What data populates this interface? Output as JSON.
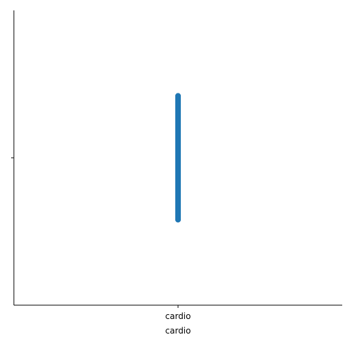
{
  "chart_data": {
    "type": "scatter",
    "title": "",
    "xlabel": "cardio",
    "ylabel": "",
    "x_categories": [
      "cardio"
    ],
    "y_categories": [
      ""
    ],
    "grid": false,
    "legend": "none",
    "points_color": "#1f77b4",
    "points": [
      {
        "x": "cardio",
        "y": "",
        "y_offset": -0.21
      },
      {
        "x": "cardio",
        "y": "",
        "y_offset": -0.18
      },
      {
        "x": "cardio",
        "y": "",
        "y_offset": -0.15
      },
      {
        "x": "cardio",
        "y": "",
        "y_offset": -0.12
      },
      {
        "x": "cardio",
        "y": "",
        "y_offset": -0.09
      },
      {
        "x": "cardio",
        "y": "",
        "y_offset": -0.06
      },
      {
        "x": "cardio",
        "y": "",
        "y_offset": -0.03
      },
      {
        "x": "cardio",
        "y": "",
        "y_offset": 0.0
      },
      {
        "x": "cardio",
        "y": "",
        "y_offset": 0.03
      },
      {
        "x": "cardio",
        "y": "",
        "y_offset": 0.06
      },
      {
        "x": "cardio",
        "y": "",
        "y_offset": 0.09
      },
      {
        "x": "cardio",
        "y": "",
        "y_offset": 0.12
      },
      {
        "x": "cardio",
        "y": "",
        "y_offset": 0.15
      },
      {
        "x": "cardio",
        "y": "",
        "y_offset": 0.18
      },
      {
        "x": "cardio",
        "y": "",
        "y_offset": 0.21
      }
    ]
  }
}
